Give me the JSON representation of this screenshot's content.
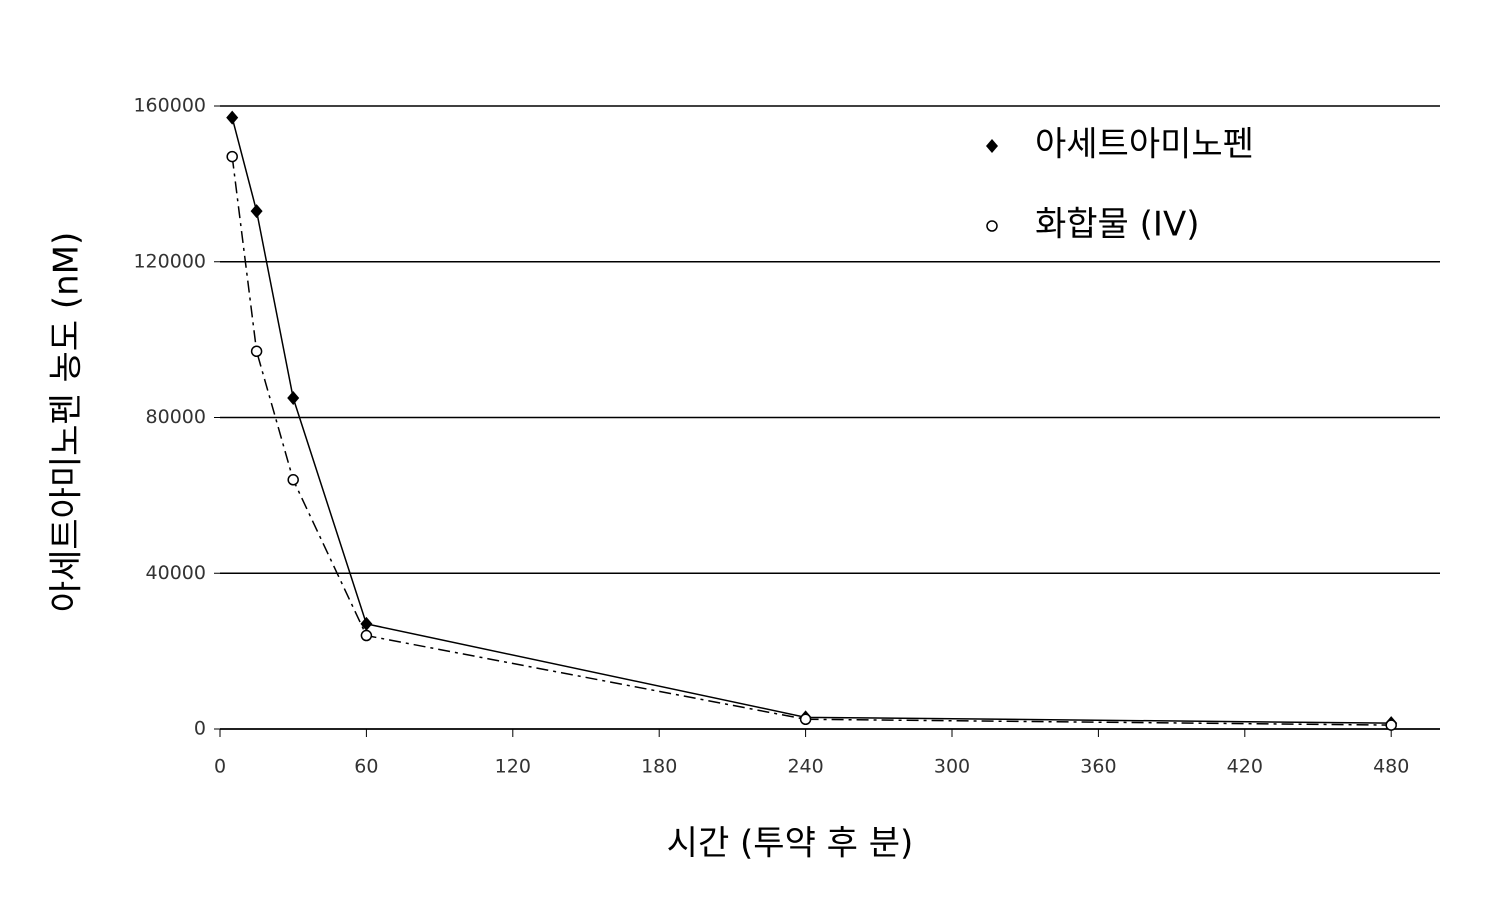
{
  "chart_data": {
    "type": "line",
    "x_label": "시간 (투약 후 분)",
    "y_label": "아세트아미노펜 농도 (nM)",
    "series": [
      {
        "name": "아세트아미노펜",
        "color": "#000000",
        "marker": "diamond",
        "line_style": "solid",
        "x": [
          5,
          15,
          30,
          60,
          240,
          480
        ],
        "values": [
          157000,
          133000,
          85000,
          27000,
          3000,
          1500
        ]
      },
      {
        "name": "화합물 (IV)",
        "color": "#000000",
        "marker": "circle",
        "line_style": "dashed",
        "x": [
          5,
          15,
          30,
          60,
          240,
          480
        ],
        "values": [
          147000,
          97000,
          64000,
          24000,
          2500,
          1000
        ]
      }
    ],
    "xlim": [
      0,
      500
    ],
    "xticks": [
      0,
      60,
      120,
      180,
      240,
      300,
      360,
      420,
      480
    ],
    "ylim": [
      0,
      160000
    ],
    "yticks": [
      0,
      40000,
      80000,
      120000,
      160000
    ],
    "grid": true,
    "legend": "upper right"
  }
}
